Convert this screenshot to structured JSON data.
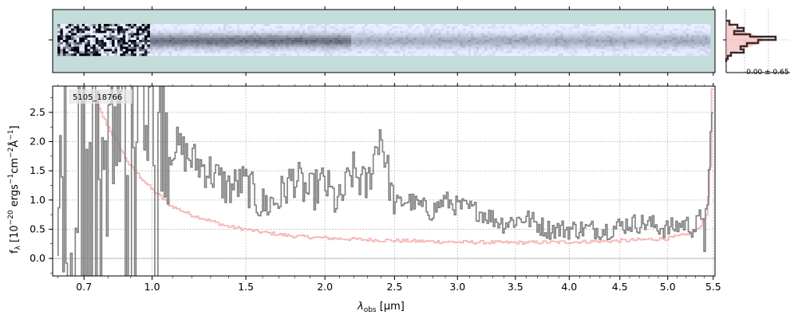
{
  "chart_data": [
    {
      "panel": "2d-spectrum",
      "type": "heatmap",
      "description_colors": {
        "background": "#c4dcda",
        "dark": "#1a1f3a"
      },
      "x_ticks": [],
      "y_ticks": []
    },
    {
      "panel": "1d-spectrum",
      "type": "line",
      "id_label": "5105_18766",
      "xlabel_main": "λ",
      "xlabel_sub": "obs",
      "xlabel_unit": " [μm]",
      "ylabel": "f_λ [10^-20 ergs^-1 cm^-2 Å^-1]",
      "ylabel_parts": {
        "f": "f",
        "sub": "λ",
        "open": " [10",
        "exp1": "−20",
        "ergs": " ergs",
        "exp2": "−1",
        "cm": "cm",
        "exp3": "−2",
        "ang": "Å",
        "exp4": "−1",
        "close": "]"
      },
      "xlim": [
        0.58,
        5.52
      ],
      "ylim": [
        -0.3,
        2.95
      ],
      "x_scale": "sqrt-like (JWST prism)",
      "x_ticks": [
        {
          "v": 0.7,
          "label": "0.7"
        },
        {
          "v": 1.0,
          "label": "1.0"
        },
        {
          "v": 1.5,
          "label": "1.5"
        },
        {
          "v": 2.0,
          "label": "2.0"
        },
        {
          "v": 2.5,
          "label": "2.5"
        },
        {
          "v": 3.0,
          "label": "3.0"
        },
        {
          "v": 3.5,
          "label": "3.5"
        },
        {
          "v": 4.0,
          "label": "4.0"
        },
        {
          "v": 4.5,
          "label": "4.5"
        },
        {
          "v": 5.0,
          "label": "5.0"
        },
        {
          "v": 5.5,
          "label": "5.5"
        }
      ],
      "y_ticks": [
        {
          "v": 0.0,
          "label": "0.0"
        },
        {
          "v": 0.5,
          "label": "0.5"
        },
        {
          "v": 1.0,
          "label": "1.0"
        },
        {
          "v": 1.5,
          "label": "1.5"
        },
        {
          "v": 2.0,
          "label": "2.0"
        },
        {
          "v": 2.5,
          "label": "2.5"
        }
      ],
      "grid": true,
      "series": [
        {
          "kind": "flux",
          "color": "#808080",
          "x": [
            0.6,
            0.65,
            0.7,
            0.75,
            0.8,
            0.85,
            0.9,
            0.95,
            1.0,
            1.1,
            1.2,
            1.3,
            1.4,
            1.5,
            1.6,
            1.7,
            1.8,
            1.9,
            2.0,
            2.1,
            2.2,
            2.3,
            2.4,
            2.5,
            2.6,
            2.7,
            2.8,
            2.9,
            3.0,
            3.2,
            3.4,
            3.6,
            3.8,
            4.0,
            4.2,
            4.4,
            4.6,
            4.8,
            5.0,
            5.2,
            5.3,
            5.4,
            5.45,
            5.5
          ],
          "y": [
            1.2,
            -0.3,
            2.9,
            1.8,
            1.6,
            1.9,
            2.5,
            2.9,
            2.9,
            2.0,
            1.7,
            1.5,
            1.2,
            1.3,
            0.9,
            1.0,
            1.4,
            1.1,
            1.3,
            0.9,
            1.5,
            1.2,
            2.2,
            0.9,
            1.0,
            0.9,
            0.8,
            1.0,
            0.9,
            0.8,
            0.6,
            0.7,
            0.5,
            0.5,
            0.5,
            0.5,
            0.6,
            0.6,
            0.5,
            0.6,
            0.5,
            0.8,
            0.2,
            2.9
          ]
        },
        {
          "kind": "error",
          "color": "#f4a6a6",
          "x": [
            0.7,
            0.75,
            0.8,
            0.9,
            1.0,
            1.1,
            1.2,
            1.4,
            1.6,
            1.8,
            2.0,
            2.3,
            2.6,
            3.0,
            3.5,
            4.0,
            4.5,
            5.0,
            5.2,
            5.35,
            5.45,
            5.48,
            5.5
          ],
          "y": [
            2.8,
            2.7,
            2.3,
            1.6,
            1.2,
            0.9,
            0.75,
            0.55,
            0.45,
            0.38,
            0.35,
            0.32,
            0.3,
            0.28,
            0.27,
            0.28,
            0.3,
            0.34,
            0.4,
            0.5,
            0.8,
            1.6,
            2.9
          ]
        }
      ]
    },
    {
      "panel": "histogram",
      "type": "bar",
      "annotation": "-0.00 ± 0.65"
    }
  ]
}
